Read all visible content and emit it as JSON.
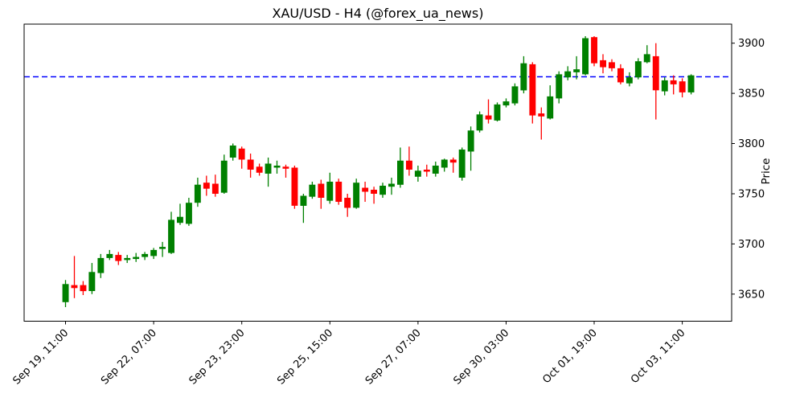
{
  "title": "XAU/USD - H4 (@forex_ua_news)",
  "chart_data": {
    "type": "candlestick",
    "symbol": "XAU/USD",
    "timeframe": "H4",
    "source_handle": "@forex_ua_news",
    "ylabel": "Price",
    "ylabel_side": "right",
    "grid": false,
    "ylim": [
      3623,
      3919
    ],
    "xlim": [
      -4.7,
      75.6
    ],
    "y_ticks": [
      3650,
      3700,
      3750,
      3800,
      3850,
      3900
    ],
    "x_ticks": [
      {
        "index": 0,
        "label": "Sep 19, 11:00"
      },
      {
        "index": 10,
        "label": "Sep 22, 07:00"
      },
      {
        "index": 20,
        "label": "Sep 23, 23:00"
      },
      {
        "index": 30,
        "label": "Sep 25, 15:00"
      },
      {
        "index": 40,
        "label": "Sep 27, 07:00"
      },
      {
        "index": 50,
        "label": "Sep 30, 03:00"
      },
      {
        "index": 60,
        "label": "Oct 01, 19:00"
      },
      {
        "index": 70,
        "label": "Oct 03, 11:00"
      }
    ],
    "hline": {
      "price": 3866.5,
      "color": "#0000ff",
      "style": "dashed"
    },
    "colors": {
      "up": "#008000",
      "down": "#ff0000",
      "axis": "#000000"
    },
    "candles_ohlc": [
      [
        3642,
        3664,
        3637,
        3660
      ],
      [
        3659,
        3688,
        3646,
        3656
      ],
      [
        3659,
        3663,
        3649,
        3653
      ],
      [
        3653,
        3681,
        3650,
        3672
      ],
      [
        3671,
        3690,
        3666,
        3686
      ],
      [
        3686,
        3694,
        3684,
        3690
      ],
      [
        3689,
        3692,
        3679,
        3683
      ],
      [
        3684,
        3689,
        3681,
        3686
      ],
      [
        3685,
        3691,
        3682,
        3687
      ],
      [
        3687,
        3692,
        3684,
        3690
      ],
      [
        3688,
        3696,
        3685,
        3694
      ],
      [
        3695,
        3702,
        3687,
        3697
      ],
      [
        3691,
        3732,
        3690,
        3724
      ],
      [
        3721,
        3740,
        3719,
        3727
      ],
      [
        3720,
        3746,
        3718,
        3741
      ],
      [
        3741,
        3766,
        3737,
        3759
      ],
      [
        3761,
        3768,
        3748,
        3755
      ],
      [
        3760,
        3769,
        3747,
        3750
      ],
      [
        3751,
        3789,
        3750,
        3783
      ],
      [
        3786,
        3800,
        3783,
        3798
      ],
      [
        3795,
        3797,
        3775,
        3784
      ],
      [
        3784,
        3790,
        3766,
        3774
      ],
      [
        3777,
        3780,
        3768,
        3771
      ],
      [
        3770,
        3786,
        3757,
        3780
      ],
      [
        3776,
        3783,
        3770,
        3778
      ],
      [
        3777,
        3779,
        3766,
        3775
      ],
      [
        3776,
        3778,
        3735,
        3738
      ],
      [
        3738,
        3750,
        3721,
        3748
      ],
      [
        3747,
        3762,
        3745,
        3759
      ],
      [
        3760,
        3764,
        3735,
        3746
      ],
      [
        3743,
        3771,
        3740,
        3762
      ],
      [
        3762,
        3765,
        3739,
        3742
      ],
      [
        3746,
        3750,
        3727,
        3736
      ],
      [
        3736,
        3765,
        3735,
        3761
      ],
      [
        3756,
        3762,
        3742,
        3752
      ],
      [
        3754,
        3757,
        3740,
        3750
      ],
      [
        3749,
        3761,
        3746,
        3758
      ],
      [
        3757,
        3766,
        3749,
        3760
      ],
      [
        3759,
        3796,
        3756,
        3783
      ],
      [
        3783,
        3797,
        3768,
        3774
      ],
      [
        3767,
        3778,
        3762,
        3773
      ],
      [
        3774,
        3779,
        3767,
        3772
      ],
      [
        3770,
        3782,
        3767,
        3778
      ],
      [
        3776,
        3785,
        3772,
        3784
      ],
      [
        3784,
        3786,
        3771,
        3781
      ],
      [
        3766,
        3796,
        3763,
        3794
      ],
      [
        3792,
        3817,
        3773,
        3813
      ],
      [
        3813,
        3832,
        3811,
        3829
      ],
      [
        3828,
        3844,
        3820,
        3824
      ],
      [
        3823,
        3841,
        3822,
        3839
      ],
      [
        3838,
        3845,
        3836,
        3842
      ],
      [
        3840,
        3860,
        3838,
        3857
      ],
      [
        3853,
        3887,
        3850,
        3880
      ],
      [
        3879,
        3881,
        3820,
        3828
      ],
      [
        3830,
        3836,
        3804,
        3827
      ],
      [
        3825,
        3858,
        3824,
        3847
      ],
      [
        3845,
        3872,
        3840,
        3869
      ],
      [
        3866,
        3877,
        3863,
        3872
      ],
      [
        3871,
        3887,
        3864,
        3874
      ],
      [
        3869,
        3907,
        3868,
        3905
      ],
      [
        3906,
        3907,
        3877,
        3880
      ],
      [
        3883,
        3889,
        3870,
        3876
      ],
      [
        3881,
        3884,
        3872,
        3875
      ],
      [
        3875,
        3879,
        3859,
        3861
      ],
      [
        3860,
        3871,
        3857,
        3866
      ],
      [
        3866,
        3885,
        3864,
        3882
      ],
      [
        3881,
        3898,
        3880,
        3889
      ],
      [
        3887,
        3900,
        3824,
        3853
      ],
      [
        3852,
        3866,
        3848,
        3863
      ],
      [
        3863,
        3868,
        3849,
        3859
      ],
      [
        3862,
        3865,
        3846,
        3851
      ],
      [
        3851,
        3869,
        3849,
        3868
      ]
    ]
  }
}
